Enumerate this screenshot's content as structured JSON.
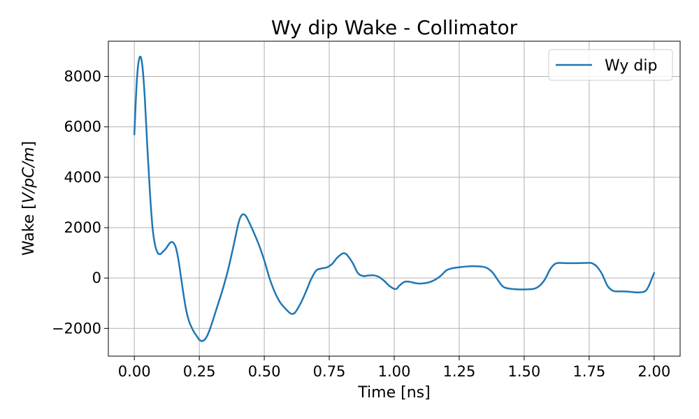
{
  "chart_data": {
    "type": "line",
    "title": "Wy dip Wake - Collimator",
    "xlabel": "Time [ns]",
    "ylabel_prefix": "Wake [",
    "ylabel_math": "V/pC/m",
    "ylabel_suffix": "]",
    "xlim": [
      -0.1,
      2.1
    ],
    "ylim": [
      -3100,
      9400
    ],
    "xticks": [
      0.0,
      0.25,
      0.5,
      0.75,
      1.0,
      1.25,
      1.5,
      1.75,
      2.0
    ],
    "xtick_labels": [
      "0.00",
      "0.25",
      "0.50",
      "0.75",
      "1.00",
      "1.25",
      "1.50",
      "1.75",
      "2.00"
    ],
    "yticks": [
      -2000,
      0,
      2000,
      4000,
      6000,
      8000
    ],
    "ytick_labels": [
      "−2000",
      "0",
      "2000",
      "4000",
      "6000",
      "8000"
    ],
    "grid": true,
    "legend_position": "top-right",
    "series": [
      {
        "name": "Wy dip",
        "color": "#1f77b4",
        "x": [
          0.0,
          0.01,
          0.02,
          0.03,
          0.04,
          0.05,
          0.06,
          0.07,
          0.08,
          0.09,
          0.1,
          0.11,
          0.12,
          0.13,
          0.14,
          0.15,
          0.16,
          0.17,
          0.18,
          0.19,
          0.2,
          0.21,
          0.22,
          0.23,
          0.24,
          0.25,
          0.26,
          0.27,
          0.28,
          0.29,
          0.3,
          0.32,
          0.34,
          0.36,
          0.38,
          0.4,
          0.41,
          0.42,
          0.43,
          0.44,
          0.46,
          0.48,
          0.5,
          0.52,
          0.54,
          0.56,
          0.58,
          0.6,
          0.61,
          0.62,
          0.64,
          0.66,
          0.68,
          0.7,
          0.72,
          0.74,
          0.76,
          0.78,
          0.8,
          0.81,
          0.82,
          0.84,
          0.86,
          0.88,
          0.9,
          0.92,
          0.94,
          0.96,
          0.98,
          1.0,
          1.01,
          1.02,
          1.04,
          1.06,
          1.08,
          1.1,
          1.12,
          1.14,
          1.16,
          1.18,
          1.2,
          1.22,
          1.25,
          1.28,
          1.31,
          1.34,
          1.36,
          1.38,
          1.4,
          1.42,
          1.45,
          1.48,
          1.51,
          1.54,
          1.56,
          1.58,
          1.6,
          1.62,
          1.64,
          1.66,
          1.7,
          1.74,
          1.76,
          1.78,
          1.8,
          1.82,
          1.84,
          1.86,
          1.88,
          1.9,
          1.92,
          1.94,
          1.96,
          1.97,
          1.98,
          1.99,
          2.0
        ],
        "y": [
          5700,
          7900,
          8750,
          8500,
          7200,
          5200,
          3400,
          2000,
          1300,
          1000,
          950,
          1050,
          1150,
          1300,
          1420,
          1400,
          1200,
          700,
          0,
          -700,
          -1300,
          -1700,
          -1950,
          -2150,
          -2300,
          -2450,
          -2500,
          -2450,
          -2300,
          -2050,
          -1750,
          -1100,
          -450,
          300,
          1200,
          2150,
          2450,
          2530,
          2450,
          2250,
          1800,
          1300,
          700,
          0,
          -550,
          -950,
          -1200,
          -1400,
          -1420,
          -1350,
          -1000,
          -550,
          -50,
          300,
          380,
          420,
          550,
          800,
          970,
          980,
          900,
          600,
          200,
          80,
          100,
          110,
          50,
          -100,
          -300,
          -430,
          -420,
          -300,
          -150,
          -150,
          -200,
          -220,
          -200,
          -150,
          -50,
          100,
          300,
          380,
          430,
          460,
          470,
          450,
          380,
          200,
          -100,
          -350,
          -430,
          -450,
          -450,
          -420,
          -300,
          -50,
          350,
          570,
          600,
          590,
          590,
          600,
          590,
          450,
          150,
          -300,
          -500,
          -530,
          -530,
          -540,
          -560,
          -570,
          -550,
          -480,
          -300,
          -50,
          200
        ]
      }
    ]
  }
}
